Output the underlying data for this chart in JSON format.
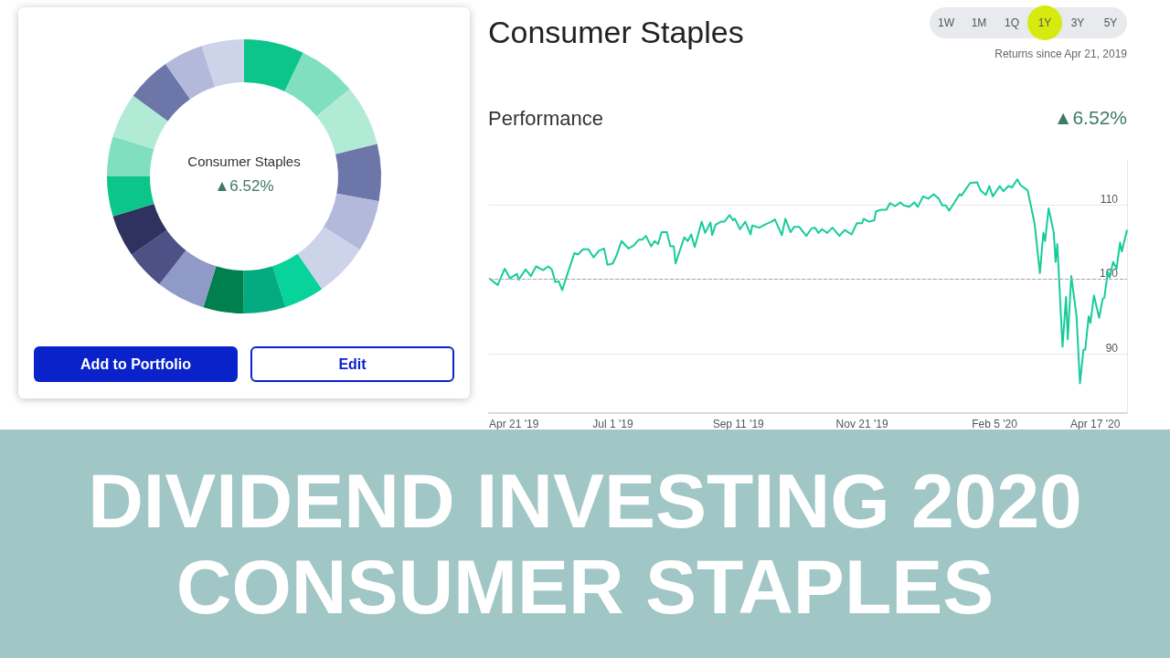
{
  "chart_data": [
    {
      "type": "donut",
      "categories": [
        null,
        null,
        null,
        null,
        null,
        null,
        null,
        null,
        null,
        null,
        null,
        null,
        null,
        null,
        null,
        null,
        null,
        null
      ],
      "values": [
        7.1,
        6.9,
        7.2,
        6.7,
        6.1,
        6.4,
        4.7,
        5.0,
        4.7,
        5.8,
        4.7,
        5.0,
        4.7,
        4.7,
        5.3,
        5.3,
        4.7,
        5.0
      ],
      "colors": [
        "#0cc58a",
        "#80dfbe",
        "#b1ebd6",
        "#6d76a8",
        "#b3b9da",
        "#cdd3e8",
        "#07d39a",
        "#05ab80",
        "#00804f",
        "#8f9ac8",
        "#4d5185",
        "#2f325f",
        "#0cc58a",
        "#80dfbe",
        "#b1ebd6",
        "#6d76a8",
        "#b3b9da",
        "#cdd3e8"
      ],
      "annotations": [
        "Consumer Staples",
        "▲6.52%",
        "Add to Portfolio",
        "Edit"
      ]
    },
    {
      "type": "line",
      "title": "Consumer Staples",
      "subtitle": "Returns since Apr 21, 2019",
      "annotations": [
        "1W",
        "1M",
        "1Q",
        "1Y",
        "3Y",
        "5Y",
        "Performance",
        "▲6.52%"
      ],
      "x": [
        "2019-04-21",
        "2019-04-26",
        "2019-04-30",
        "2019-05-03",
        "2019-05-07",
        "2019-05-08",
        "2019-05-12",
        "2019-05-15",
        "2019-05-18",
        "2019-05-22",
        "2019-05-25",
        "2019-05-27",
        "2019-05-29",
        "2019-05-31",
        "2019-06-02",
        "2019-06-04",
        "2019-06-09",
        "2019-06-11",
        "2019-06-14",
        "2019-06-17",
        "2019-06-20",
        "2019-06-23",
        "2019-06-26",
        "2019-06-28",
        "2019-07-01",
        "2019-07-03",
        "2019-07-06",
        "2019-07-10",
        "2019-07-13",
        "2019-07-16",
        "2019-07-18",
        "2019-07-20",
        "2019-07-23",
        "2019-07-25",
        "2019-07-27",
        "2019-07-29",
        "2019-08-01",
        "2019-08-03",
        "2019-08-05",
        "2019-08-06",
        "2019-08-11",
        "2019-08-13",
        "2019-08-15",
        "2019-08-17",
        "2019-08-21",
        "2019-08-23",
        "2019-08-26",
        "2019-08-27",
        "2019-08-29",
        "2019-09-01",
        "2019-09-03",
        "2019-09-06",
        "2019-09-08",
        "2019-09-09",
        "2019-09-12",
        "2019-09-15",
        "2019-09-18",
        "2019-09-19",
        "2019-09-23",
        "2019-09-27",
        "2019-09-30",
        "2019-10-02",
        "2019-10-06",
        "2019-10-08",
        "2019-10-11",
        "2019-10-13",
        "2019-10-16",
        "2019-10-20",
        "2019-10-23",
        "2019-10-25",
        "2019-10-27",
        "2019-10-29",
        "2019-11-01",
        "2019-11-04",
        "2019-11-08",
        "2019-11-11",
        "2019-11-15",
        "2019-11-18",
        "2019-11-21",
        "2019-11-22",
        "2019-11-25",
        "2019-11-28",
        "2019-11-29",
        "2019-12-02",
        "2019-12-05",
        "2019-12-07",
        "2019-12-10",
        "2019-12-13",
        "2019-12-15",
        "2019-12-18",
        "2019-12-21",
        "2019-12-23",
        "2019-12-26",
        "2019-12-29",
        "2020-01-01",
        "2020-01-04",
        "2020-01-06",
        "2020-01-08",
        "2020-01-10",
        "2020-01-13",
        "2020-01-16",
        "2020-01-17",
        "2020-01-22",
        "2020-01-26",
        "2020-01-28",
        "2020-01-31",
        "2020-02-02",
        "2020-02-04",
        "2020-02-08",
        "2020-02-10",
        "2020-02-13",
        "2020-02-15",
        "2020-02-18",
        "2020-02-20",
        "2020-02-24",
        "2020-02-28",
        "2020-03-02",
        "2020-03-04",
        "2020-03-05",
        "2020-03-07",
        "2020-03-10",
        "2020-03-11",
        "2020-03-12",
        "2020-03-15",
        "2020-03-17",
        "2020-03-18",
        "2020-03-20",
        "2020-03-23",
        "2020-03-25",
        "2020-03-27",
        "2020-03-28",
        "2020-03-30",
        "2020-03-31",
        "2020-04-02",
        "2020-04-05",
        "2020-04-07",
        "2020-04-08",
        "2020-04-10",
        "2020-04-11",
        "2020-04-13",
        "2020-04-15",
        "2020-04-17",
        "2020-04-18",
        "2020-04-21"
      ],
      "series": [
        {
          "color": "#16cc9a",
          "values": [
            100.1,
            99.2,
            101.4,
            100.1,
            100.7,
            99.9,
            101.3,
            100.4,
            101.7,
            101.2,
            101.7,
            101.3,
            99.6,
            99.7,
            98.5,
            100,
            103.5,
            103.3,
            104,
            104,
            102.9,
            103.8,
            104.1,
            101.9,
            102.1,
            103.1,
            105.1,
            104.1,
            104.5,
            105.3,
            105.3,
            105.8,
            104.4,
            105.1,
            104.7,
            106.3,
            106.3,
            104.4,
            104.4,
            102.1,
            105.6,
            105.1,
            106,
            104.3,
            107.7,
            106.2,
            107.6,
            105.9,
            107.3,
            107.7,
            107.7,
            108.6,
            107.9,
            108.1,
            106.7,
            107.7,
            106,
            107.2,
            106.9,
            107.4,
            107.7,
            108,
            105.9,
            108.1,
            106.3,
            107,
            107,
            105.8,
            106.8,
            106.9,
            106.2,
            106.7,
            106.2,
            106.9,
            105.8,
            106.6,
            106,
            107.5,
            107.5,
            108.1,
            107.7,
            107.9,
            109.1,
            109.3,
            109.3,
            110.2,
            109.8,
            110.3,
            109.9,
            109.7,
            110.3,
            109.7,
            111.1,
            110.8,
            111.4,
            110.8,
            109.9,
            109.9,
            109.2,
            110.3,
            111.4,
            111.2,
            112.9,
            113,
            111.9,
            111.3,
            112.5,
            111.1,
            112.5,
            111.8,
            112.5,
            112.3,
            113.4,
            112.6,
            111.9,
            107.4,
            100.8,
            106.2,
            105.1,
            109.5,
            106.2,
            102.3,
            104.7,
            90.9,
            97.6,
            91.9,
            100.4,
            95.1,
            86.0,
            90.5,
            90.5,
            95,
            94.1,
            97.8,
            94.8,
            97.3,
            97.5,
            101,
            100.2,
            102.3,
            101.4,
            104.9,
            103.7,
            106.6
          ]
        }
      ],
      "xlim": [
        "2019-04-21",
        "2020-04-21"
      ],
      "xticks": [
        {
          "value": "2019-04-21",
          "label": "Apr 21 '19"
        },
        {
          "value": "2019-07-01",
          "label": "Jul 1 '19"
        },
        {
          "value": "2019-09-11",
          "label": "Sep 11 '19"
        },
        {
          "value": "2019-11-21",
          "label": "Nov 21 '19"
        },
        {
          "value": "2020-02-05",
          "label": "Feb 5 '20"
        },
        {
          "value": "2020-04-17",
          "label": "Apr 17 '20"
        }
      ],
      "ylim": [
        82,
        116
      ],
      "yticks": [
        90,
        100,
        110
      ],
      "grid": "y",
      "marker": "none",
      "line_style": "solid",
      "ref_lines": [
        {
          "axis": "y",
          "value": 100,
          "color": "#a8a8a8",
          "line_style": "dashed"
        }
      ]
    },
    {
      "type": "other",
      "annotations": [
        "DIVIDEND INVESTING 2020",
        "CONSUMER STAPLES"
      ]
    }
  ]
}
